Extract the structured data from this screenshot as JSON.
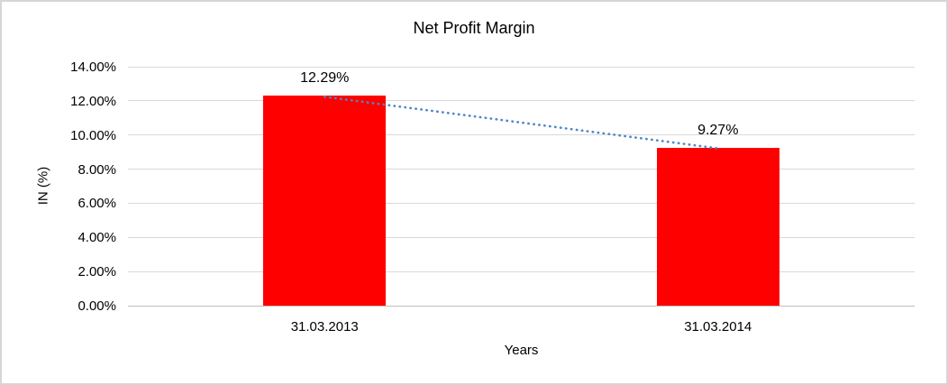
{
  "chart_data": {
    "type": "bar",
    "title": "Net Profit Margin",
    "xlabel": "Years",
    "ylabel": "IN (%)",
    "categories": [
      "31.03.2013",
      "31.03.2014"
    ],
    "values": [
      12.29,
      9.27
    ],
    "data_labels": [
      "12.29%",
      "9.27%"
    ],
    "ylim": [
      0,
      14
    ],
    "ytick_step": 2,
    "ytick_labels": [
      "0.00%",
      "2.00%",
      "4.00%",
      "6.00%",
      "8.00%",
      "10.00%",
      "12.00%",
      "14.00%"
    ],
    "grid": true,
    "legend_position": "none",
    "trendline": {
      "style": "dotted",
      "from_value": 12.29,
      "to_value": 9.27
    },
    "colors": {
      "bar": "#ff0000",
      "gridline": "#d9d9d9",
      "axis_line": "#bfbfbf",
      "trendline": "#4e86c8",
      "text": "#000000",
      "border": "#d6d6d6",
      "background": "#ffffff"
    }
  }
}
